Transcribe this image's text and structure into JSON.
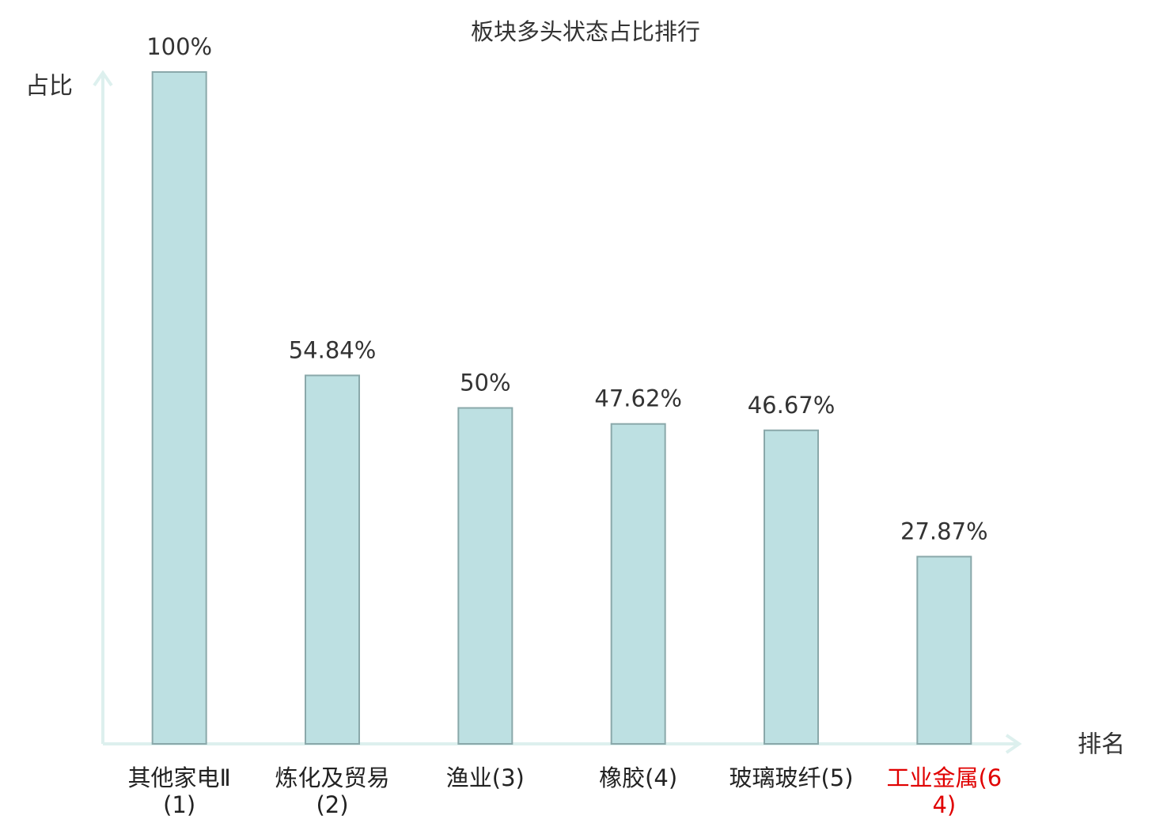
{
  "chart_data": {
    "type": "bar",
    "title": "板块多头状态占比排行",
    "y_label": "占比",
    "x_label": "排名",
    "categories": [
      "其他家电Ⅱ(1)",
      "炼化及贸易(2)",
      "渔业(3)",
      "橡胶(4)",
      "玻璃玻纤(5)",
      "工业金属(64)"
    ],
    "category_colors": [
      "#222222",
      "#222222",
      "#222222",
      "#222222",
      "#222222",
      "#e00000"
    ],
    "values": [
      100,
      54.84,
      50,
      47.62,
      46.67,
      27.87
    ],
    "value_labels": [
      "100%",
      "54.84%",
      "50%",
      "47.62%",
      "46.67%",
      "27.87%"
    ],
    "color": "#bde0e2",
    "ylim": [
      0,
      100
    ]
  }
}
